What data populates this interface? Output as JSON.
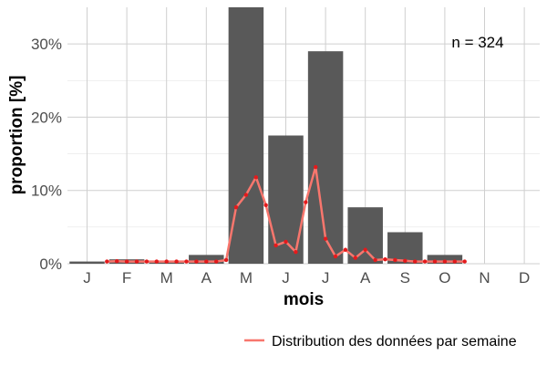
{
  "chart_data": {
    "type": "bar",
    "categories": [
      "J",
      "F",
      "M",
      "A",
      "M",
      "J",
      "J",
      "A",
      "S",
      "O",
      "N",
      "D"
    ],
    "values": [
      0.3,
      0.6,
      0.3,
      1.2,
      35.0,
      17.5,
      29.0,
      7.7,
      4.3,
      1.2,
      0,
      0
    ],
    "line_series": {
      "name": "Distribution des données par semaine",
      "color": "#f8766d",
      "point_color": "#e41a1c",
      "x": [
        1.5,
        1.75,
        2.0,
        2.25,
        2.5,
        2.75,
        3.0,
        3.25,
        3.5,
        3.75,
        4.0,
        4.25,
        4.5,
        4.75,
        5.0,
        5.25,
        5.5,
        5.75,
        6.0,
        6.25,
        6.5,
        6.75,
        7.0,
        7.25,
        7.5,
        7.75,
        8.0,
        8.25,
        8.5,
        8.75,
        9.0,
        9.25,
        9.5,
        9.75,
        10.0,
        10.25,
        10.5
      ],
      "values": [
        0.3,
        0.35,
        0.3,
        0.3,
        0.3,
        0.3,
        0.3,
        0.3,
        0.3,
        0.3,
        0.3,
        0.3,
        0.5,
        7.7,
        9.4,
        11.8,
        8.0,
        2.5,
        3.0,
        1.6,
        8.4,
        13.2,
        3.4,
        1.0,
        1.9,
        0.8,
        1.9,
        0.5,
        0.6,
        0.5,
        0.4,
        0.3,
        0.3,
        0.3,
        0.3,
        0.3,
        0.3
      ]
    },
    "xlabel": "mois",
    "ylabel": "proportion [%]",
    "yticks": [
      "0%",
      "10%",
      "20%",
      "30%"
    ],
    "ytick_values": [
      0,
      10,
      20,
      30
    ],
    "ylim": [
      0,
      35
    ],
    "annotation": "n = 324",
    "legend": {
      "label": "Distribution des données par semaine",
      "position": "bottom-right"
    },
    "grid": true,
    "bar_color": "#595959"
  }
}
